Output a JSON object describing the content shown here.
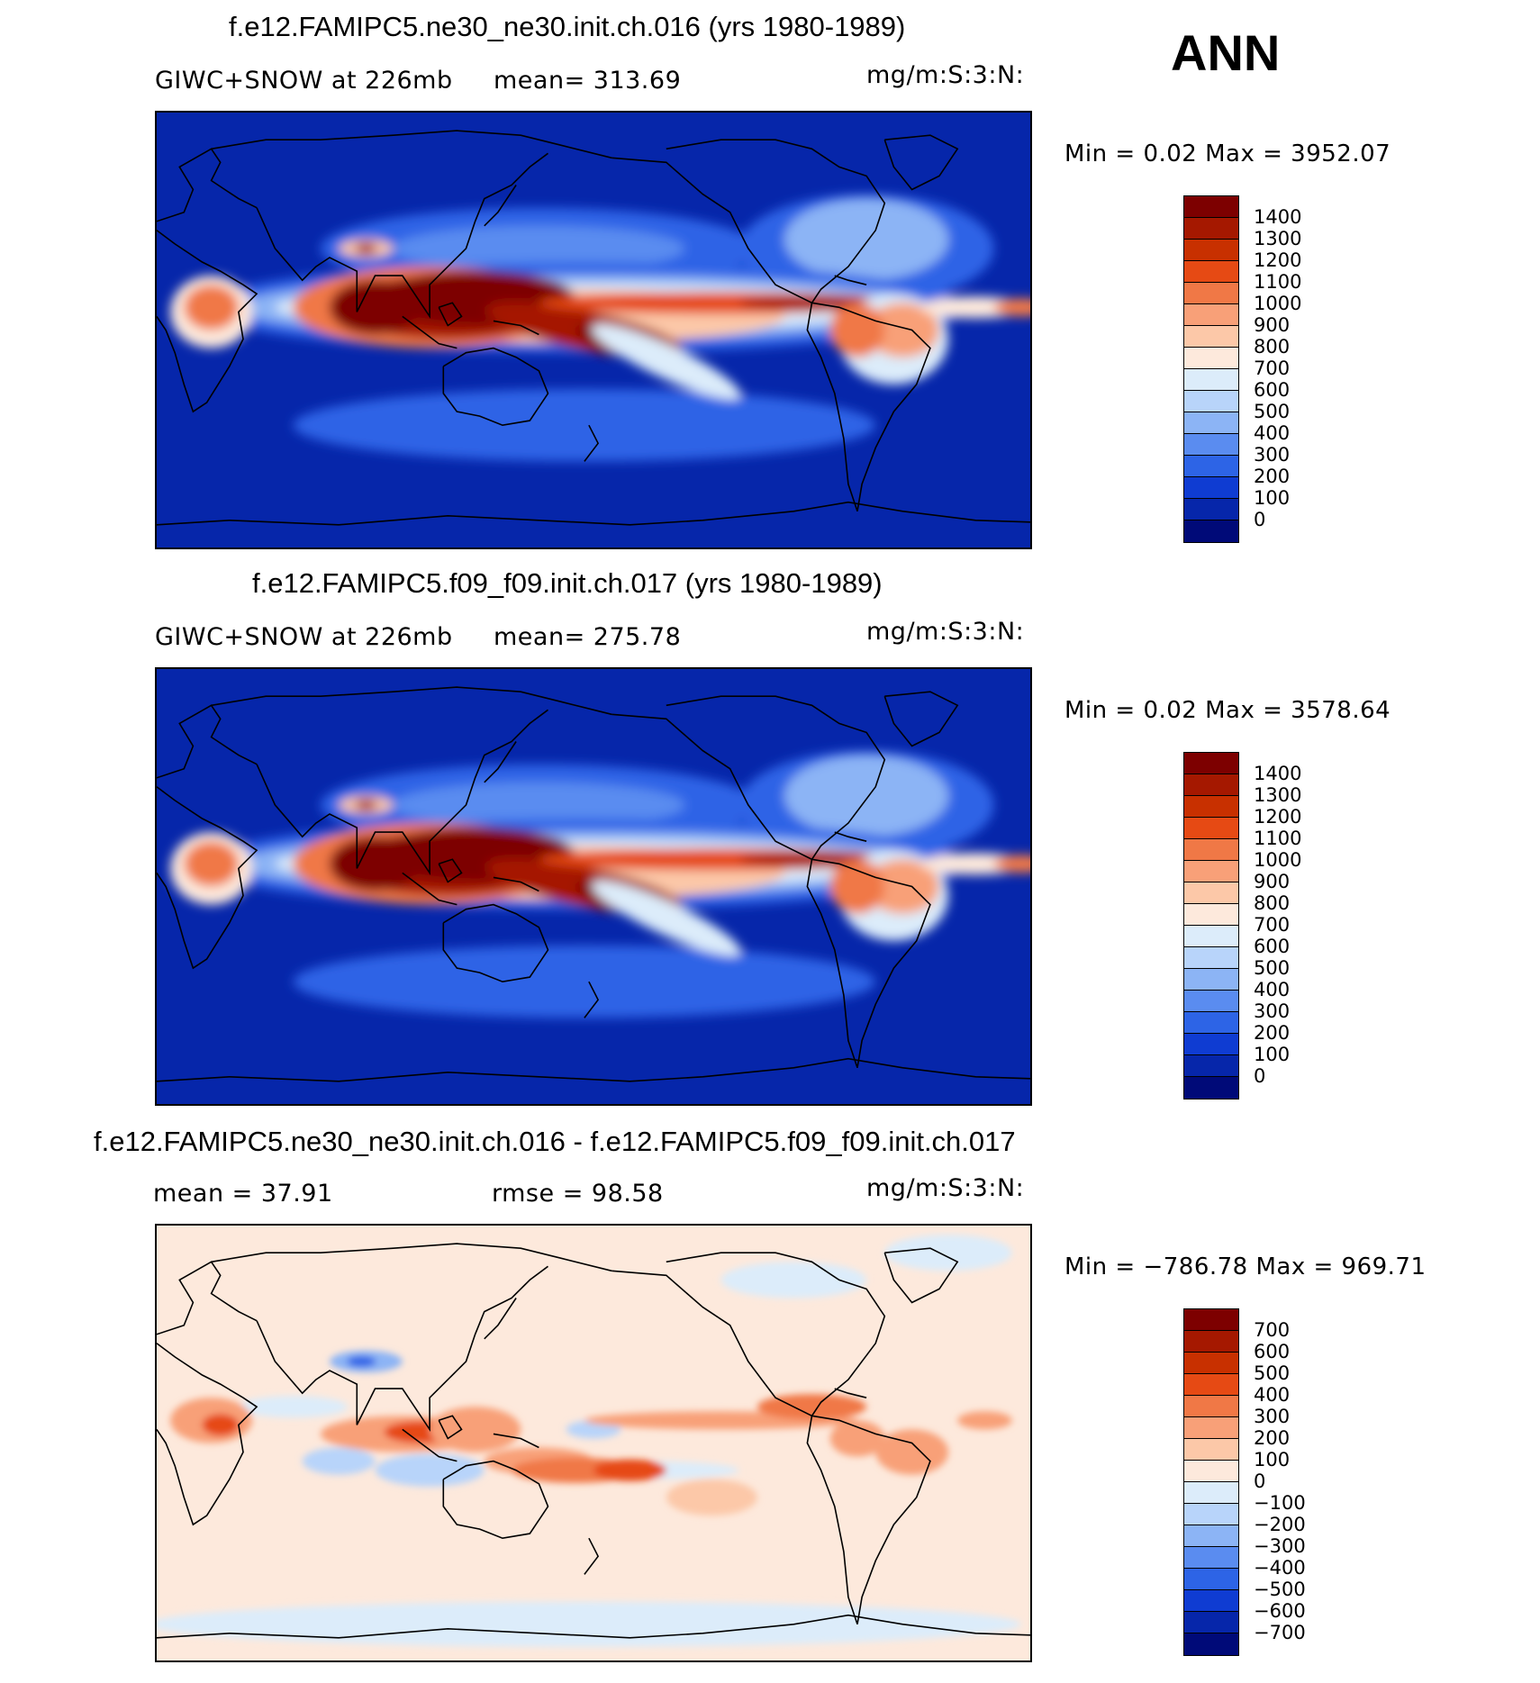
{
  "season": "ANN",
  "panels": [
    {
      "title": "f.e12.FAMIPC5.ne30_ne30.init.ch.016 (yrs 1980-1989)",
      "left_sub": "GIWC+SNOW at 226mb",
      "mid_sub": "mean= 313.69",
      "units": "mg/m:S:3:N:",
      "minmax": "Min =    0.02 Max = 3952.07",
      "field": "model1"
    },
    {
      "title": "f.e12.FAMIPC5.f09_f09.init.ch.017 (yrs 1980-1989)",
      "left_sub": "GIWC+SNOW at 226mb",
      "mid_sub": "mean= 275.78",
      "units": "mg/m:S:3:N:",
      "minmax": "Min =    0.02 Max = 3578.64",
      "field": "model2"
    },
    {
      "title": "f.e12.FAMIPC5.ne30_ne30.init.ch.016 - f.e12.FAMIPC5.f09_f09.init.ch.017",
      "left_sub": "mean =   37.91",
      "mid_sub": "rmse =   98.58",
      "units": "mg/m:S:3:N:",
      "minmax": "Min = −786.78 Max = 969.71",
      "field": "diff"
    }
  ],
  "colorbars": {
    "abs": {
      "labels": [
        "1400",
        "1300",
        "1200",
        "1100",
        "1000",
        "900",
        "800",
        "700",
        "600",
        "500",
        "400",
        "300",
        "200",
        "100",
        "0"
      ],
      "colors": [
        "#7d0000",
        "#a51800",
        "#c83000",
        "#e64a14",
        "#f07846",
        "#f8a078",
        "#fcc8a8",
        "#fde9dc",
        "#dcecfa",
        "#b8d4fa",
        "#8cb4f5",
        "#5a8cf0",
        "#2d64e6",
        "#0f3cd2",
        "#0626aa",
        "#000a78"
      ]
    },
    "diff": {
      "labels": [
        "700",
        "600",
        "500",
        "400",
        "300",
        "200",
        "100",
        "0",
        "−100",
        "−200",
        "−300",
        "−400",
        "−500",
        "−600",
        "−700"
      ],
      "colors": [
        "#7d0000",
        "#a51800",
        "#c83000",
        "#e64a14",
        "#f07846",
        "#f8a078",
        "#fcc8a8",
        "#fde9dc",
        "#dcecfa",
        "#b8d4fa",
        "#8cb4f5",
        "#5a8cf0",
        "#2d64e6",
        "#0f3cd2",
        "#0626aa",
        "#000a78"
      ]
    }
  }
}
